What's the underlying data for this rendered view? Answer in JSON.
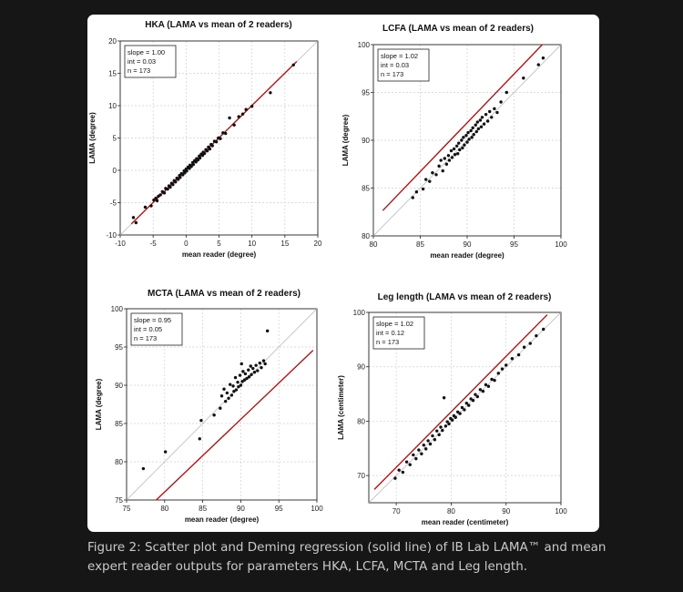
{
  "caption": "Figure 2: Scatter plot and Deming regression (solid line) of IB Lab LAMA™ and mean expert reader outputs for parameters HKA, LCFA, MCTA and Leg length.",
  "colors": {
    "background": "#161616",
    "card": "#ffffff",
    "points": "#111111",
    "regression": "#b01414",
    "identity": "#bbbbbb",
    "grid": "#d0d0d0"
  },
  "chart_data": [
    {
      "type": "scatter",
      "title": "HKA (LAMA vs mean of 2 readers)",
      "xlabel": "mean reader (degree)",
      "ylabel": "LAMA (degree)",
      "xlim": [
        -10,
        20
      ],
      "ylim": [
        -10,
        20
      ],
      "xticks": [
        -10,
        -5,
        0,
        5,
        10,
        15,
        20
      ],
      "yticks": [
        -10,
        -5,
        0,
        5,
        10,
        15,
        20
      ],
      "grid": true,
      "stats": [
        "slope = 1.00",
        "int = 0.03",
        "n = 173"
      ],
      "regression": {
        "slope": 1.0,
        "intercept": 0.03,
        "x_range": [
          -8.3,
          16.8
        ]
      },
      "identity_line": true,
      "points": [
        [
          -8,
          -7.3
        ],
        [
          -7.6,
          -8.1
        ],
        [
          -6.2,
          -5.7
        ],
        [
          -5.3,
          -5.5
        ],
        [
          -4.9,
          -4.6
        ],
        [
          -4.6,
          -4.3
        ],
        [
          -4.4,
          -4.7
        ],
        [
          -4.2,
          -4.0
        ],
        [
          -3.9,
          -3.8
        ],
        [
          -3.6,
          -3.3
        ],
        [
          -3.3,
          -3.5
        ],
        [
          -3.1,
          -2.8
        ],
        [
          -2.8,
          -2.9
        ],
        [
          -2.6,
          -2.4
        ],
        [
          -2.4,
          -2.6
        ],
        [
          -2.2,
          -2.0
        ],
        [
          -2.0,
          -2.2
        ],
        [
          -1.8,
          -1.6
        ],
        [
          -1.6,
          -1.8
        ],
        [
          -1.4,
          -1.2
        ],
        [
          -1.2,
          -1.4
        ],
        [
          -1.0,
          -0.8
        ],
        [
          -0.9,
          -1.1
        ],
        [
          -0.7,
          -0.5
        ],
        [
          -0.5,
          -0.7
        ],
        [
          -0.3,
          -0.1
        ],
        [
          -0.2,
          -0.4
        ],
        [
          0,
          0.2
        ],
        [
          0.1,
          -0.1
        ],
        [
          0.3,
          0.5
        ],
        [
          0.5,
          0.3
        ],
        [
          0.6,
          0.8
        ],
        [
          0.8,
          0.6
        ],
        [
          1.0,
          1.2
        ],
        [
          1.1,
          0.9
        ],
        [
          1.3,
          1.5
        ],
        [
          1.5,
          1.3
        ],
        [
          1.6,
          1.8
        ],
        [
          1.8,
          1.6
        ],
        [
          2.0,
          2.2
        ],
        [
          2.1,
          1.9
        ],
        [
          2.3,
          2.5
        ],
        [
          2.5,
          2.3
        ],
        [
          2.6,
          2.8
        ],
        [
          2.8,
          2.6
        ],
        [
          3.0,
          3.2
        ],
        [
          3.2,
          3.0
        ],
        [
          3.4,
          3.6
        ],
        [
          3.6,
          3.3
        ],
        [
          3.8,
          4.0
        ],
        [
          4.0,
          3.8
        ],
        [
          4.3,
          4.5
        ],
        [
          4.6,
          4.4
        ],
        [
          4.9,
          5.0
        ],
        [
          5.2,
          4.9
        ],
        [
          5.6,
          5.8
        ],
        [
          6.0,
          5.7
        ],
        [
          6.6,
          8.1
        ],
        [
          7.3,
          7.0
        ],
        [
          8.0,
          8.3
        ],
        [
          8.6,
          8.7
        ],
        [
          9.1,
          9.4
        ],
        [
          10.0,
          9.9
        ],
        [
          12.8,
          12.0
        ],
        [
          16.3,
          16.3
        ]
      ]
    },
    {
      "type": "scatter",
      "title": "LCFA (LAMA vs mean of 2 readers)",
      "xlabel": "mean reader (degree)",
      "ylabel": "LAMA (degree)",
      "xlim": [
        80,
        100
      ],
      "ylim": [
        80,
        100
      ],
      "xticks": [
        80,
        85,
        90,
        95,
        100
      ],
      "yticks": [
        80,
        85,
        90,
        95,
        100
      ],
      "grid": true,
      "stats": [
        "slope = 1.02",
        "int = 0.03",
        "n = 173"
      ],
      "regression": {
        "slope": 1.02,
        "intercept": 0.03,
        "x_range": [
          81,
          98.5
        ]
      },
      "identity_line": true,
      "points": [
        [
          84.2,
          84.0
        ],
        [
          84.6,
          84.6
        ],
        [
          85.3,
          84.9
        ],
        [
          85.6,
          85.9
        ],
        [
          86.0,
          85.7
        ],
        [
          86.3,
          86.6
        ],
        [
          86.7,
          86.4
        ],
        [
          87.0,
          87.3
        ],
        [
          87.2,
          87.9
        ],
        [
          87.4,
          86.8
        ],
        [
          87.6,
          88.1
        ],
        [
          87.8,
          87.5
        ],
        [
          88.0,
          88.4
        ],
        [
          88.1,
          87.9
        ],
        [
          88.3,
          88.9
        ],
        [
          88.4,
          88.2
        ],
        [
          88.6,
          89.1
        ],
        [
          88.7,
          88.5
        ],
        [
          88.9,
          89.4
        ],
        [
          89.0,
          88.6
        ],
        [
          89.1,
          89.7
        ],
        [
          89.2,
          89.0
        ],
        [
          89.4,
          90.0
        ],
        [
          89.5,
          89.2
        ],
        [
          89.6,
          90.3
        ],
        [
          89.7,
          89.5
        ],
        [
          89.9,
          90.5
        ],
        [
          90.0,
          89.8
        ],
        [
          90.1,
          90.8
        ],
        [
          90.2,
          90.1
        ],
        [
          90.4,
          91.0
        ],
        [
          90.5,
          90.3
        ],
        [
          90.6,
          91.3
        ],
        [
          90.7,
          90.6
        ],
        [
          90.9,
          91.6
        ],
        [
          91.0,
          90.9
        ],
        [
          91.1,
          91.9
        ],
        [
          91.2,
          91.2
        ],
        [
          91.4,
          92.1
        ],
        [
          91.5,
          91.4
        ],
        [
          91.6,
          92.4
        ],
        [
          91.8,
          91.7
        ],
        [
          92.0,
          92.7
        ],
        [
          92.2,
          92.0
        ],
        [
          92.4,
          93.0
        ],
        [
          92.6,
          92.4
        ],
        [
          92.9,
          93.3
        ],
        [
          93.2,
          92.9
        ],
        [
          93.6,
          94.0
        ],
        [
          94.2,
          95.0
        ],
        [
          96.0,
          96.5
        ],
        [
          97.6,
          97.9
        ],
        [
          98.1,
          98.6
        ]
      ]
    },
    {
      "type": "scatter",
      "title": "MCTA (LAMA vs mean of 2 readers)",
      "xlabel": "mean reader (degree)",
      "ylabel": "LAMA (degree)",
      "xlim": [
        75,
        100
      ],
      "ylim": [
        75,
        100
      ],
      "xticks": [
        75,
        80,
        85,
        90,
        95,
        100
      ],
      "yticks": [
        75,
        80,
        85,
        90,
        95,
        100
      ],
      "grid": true,
      "stats": [
        "slope = 0.95",
        "int = 0.05",
        "n = 173"
      ],
      "regression": {
        "slope": 0.95,
        "intercept": 0.05,
        "x_range": [
          76.5,
          99.5
        ]
      },
      "identity_line": true,
      "points": [
        [
          77.2,
          79.1
        ],
        [
          80.1,
          81.3
        ],
        [
          84.6,
          83.0
        ],
        [
          84.8,
          85.4
        ],
        [
          86.5,
          86.1
        ],
        [
          87.3,
          87.0
        ],
        [
          87.5,
          88.6
        ],
        [
          87.8,
          89.5
        ],
        [
          88.0,
          87.9
        ],
        [
          88.2,
          89.0
        ],
        [
          88.4,
          88.3
        ],
        [
          88.6,
          90.1
        ],
        [
          88.8,
          88.7
        ],
        [
          89.0,
          89.9
        ],
        [
          89.1,
          89.2
        ],
        [
          89.3,
          91.0
        ],
        [
          89.4,
          89.4
        ],
        [
          89.6,
          90.4
        ],
        [
          89.7,
          89.8
        ],
        [
          89.9,
          91.3
        ],
        [
          90.0,
          90.0
        ],
        [
          90.1,
          92.8
        ],
        [
          90.2,
          90.5
        ],
        [
          90.3,
          91.8
        ],
        [
          90.5,
          90.7
        ],
        [
          90.6,
          91.5
        ],
        [
          90.8,
          90.9
        ],
        [
          91.0,
          92.0
        ],
        [
          91.1,
          91.1
        ],
        [
          91.3,
          92.5
        ],
        [
          91.4,
          91.4
        ],
        [
          91.6,
          92.2
        ],
        [
          91.8,
          91.7
        ],
        [
          92.0,
          92.6
        ],
        [
          92.2,
          91.9
        ],
        [
          92.5,
          92.9
        ],
        [
          92.7,
          92.3
        ],
        [
          93.0,
          93.2
        ],
        [
          93.2,
          92.8
        ],
        [
          93.5,
          97.1
        ]
      ]
    },
    {
      "type": "scatter",
      "title": "Leg length (LAMA vs mean of 2 readers)",
      "xlabel": "mean reader (centimeter)",
      "ylabel": "LAMA (centimeter)",
      "xlim": [
        65,
        100
      ],
      "ylim": [
        65,
        100
      ],
      "xticks": [
        70,
        80,
        90,
        100
      ],
      "yticks": [
        70,
        80,
        90,
        100
      ],
      "grid": true,
      "stats": [
        "slope = 1.02",
        "int = 0.12",
        "n = 173"
      ],
      "regression": {
        "slope": 1.02,
        "intercept": 0.12,
        "x_range": [
          66,
          97.5
        ]
      },
      "identity_line": true,
      "points": [
        [
          69.8,
          69.5
        ],
        [
          70.5,
          71.0
        ],
        [
          71.2,
          70.6
        ],
        [
          71.9,
          72.5
        ],
        [
          72.5,
          72.0
        ],
        [
          73.1,
          73.8
        ],
        [
          73.6,
          73.1
        ],
        [
          74.1,
          74.7
        ],
        [
          74.6,
          74.0
        ],
        [
          75.0,
          75.6
        ],
        [
          75.4,
          74.9
        ],
        [
          75.8,
          76.4
        ],
        [
          76.2,
          75.8
        ],
        [
          76.6,
          77.3
        ],
        [
          77.0,
          76.6
        ],
        [
          77.4,
          78.2
        ],
        [
          77.8,
          77.5
        ],
        [
          78.1,
          78.9
        ],
        [
          78.4,
          78.3
        ],
        [
          78.7,
          84.3
        ],
        [
          79.0,
          79.1
        ],
        [
          79.3,
          79.9
        ],
        [
          79.6,
          79.5
        ],
        [
          79.9,
          80.5
        ],
        [
          80.2,
          80.2
        ],
        [
          80.5,
          81.0
        ],
        [
          80.8,
          80.7
        ],
        [
          81.2,
          81.7
        ],
        [
          81.6,
          81.4
        ],
        [
          82.0,
          82.5
        ],
        [
          82.4,
          82.1
        ],
        [
          82.8,
          83.3
        ],
        [
          83.2,
          82.9
        ],
        [
          83.6,
          84.1
        ],
        [
          84.0,
          83.8
        ],
        [
          84.4,
          84.9
        ],
        [
          84.8,
          84.5
        ],
        [
          85.3,
          85.8
        ],
        [
          85.8,
          85.5
        ],
        [
          86.3,
          86.7
        ],
        [
          86.8,
          86.4
        ],
        [
          87.4,
          87.7
        ],
        [
          87.9,
          87.5
        ],
        [
          88.6,
          88.8
        ],
        [
          89.3,
          89.6
        ],
        [
          90.0,
          90.3
        ],
        [
          91.1,
          91.5
        ],
        [
          92.3,
          92.2
        ],
        [
          93.3,
          93.6
        ],
        [
          94.4,
          94.3
        ],
        [
          95.5,
          95.7
        ],
        [
          96.8,
          96.9
        ]
      ]
    }
  ]
}
